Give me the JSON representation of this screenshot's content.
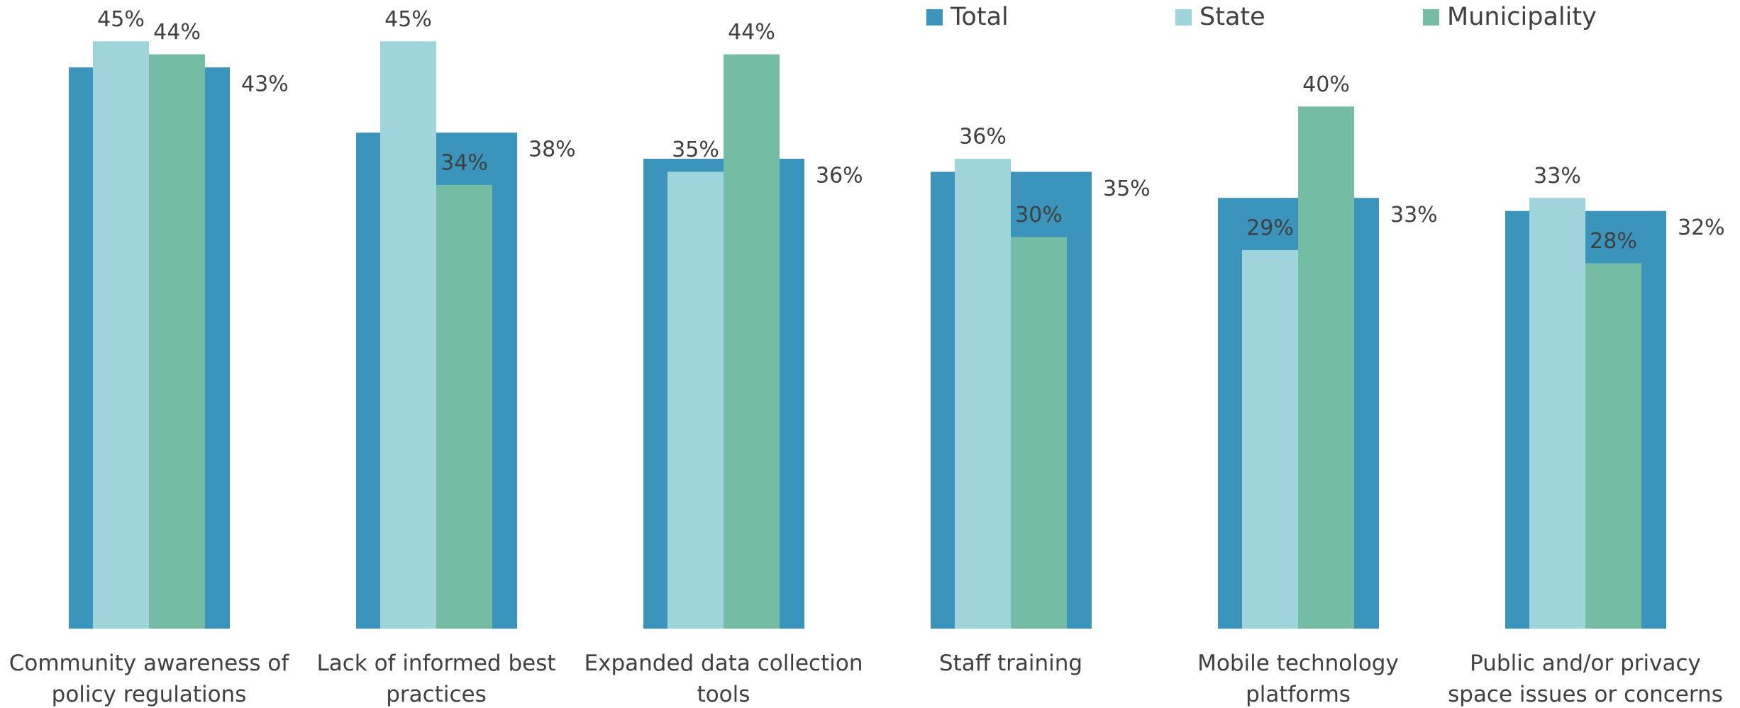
{
  "chart_data": {
    "type": "bar",
    "categories": [
      "Community awareness of policy regulations",
      "Lack of informed best practices",
      "Expanded data collection tools",
      "Staff training",
      "Mobile technology platforms",
      "Public and/or privacy space issues or concerns"
    ],
    "series": [
      {
        "name": "Total",
        "color": "#3a94bb",
        "values": [
          43,
          38,
          36,
          35,
          33,
          32
        ],
        "value_labels": [
          "43%",
          "38%",
          "36%",
          "35%",
          "33%",
          "32%"
        ]
      },
      {
        "name": "State",
        "color": "#9fd4da",
        "values": [
          45,
          45,
          35,
          36,
          29,
          33
        ],
        "value_labels": [
          "45%",
          "45%",
          "35%",
          "36%",
          "29%",
          "33%"
        ]
      },
      {
        "name": "Municipality",
        "color": "#74bca4",
        "values": [
          44,
          34,
          44,
          30,
          40,
          28
        ],
        "value_labels": [
          "44%",
          "34%",
          "44%",
          "30%",
          "40%",
          "28%"
        ]
      }
    ],
    "ylim": [
      0,
      48
    ],
    "legend": "top-right"
  }
}
